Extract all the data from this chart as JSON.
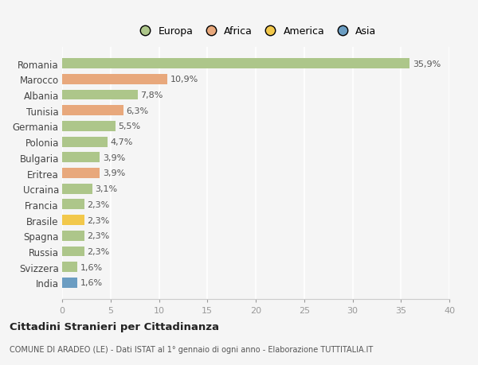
{
  "countries": [
    "Romania",
    "Marocco",
    "Albania",
    "Tunisia",
    "Germania",
    "Polonia",
    "Bulgaria",
    "Eritrea",
    "Ucraina",
    "Francia",
    "Brasile",
    "Spagna",
    "Russia",
    "Svizzera",
    "India"
  ],
  "values": [
    35.9,
    10.9,
    7.8,
    6.3,
    5.5,
    4.7,
    3.9,
    3.9,
    3.1,
    2.3,
    2.3,
    2.3,
    2.3,
    1.6,
    1.6
  ],
  "colors": [
    "#adc68a",
    "#e8a87c",
    "#adc68a",
    "#e8a87c",
    "#adc68a",
    "#adc68a",
    "#adc68a",
    "#e8a87c",
    "#adc68a",
    "#adc68a",
    "#f2c84b",
    "#adc68a",
    "#adc68a",
    "#adc68a",
    "#6b9dc2"
  ],
  "legend_labels": [
    "Europa",
    "Africa",
    "America",
    "Asia"
  ],
  "legend_colors": [
    "#adc68a",
    "#e8a87c",
    "#f2c84b",
    "#6b9dc2"
  ],
  "title": "Cittadini Stranieri per Cittadinanza",
  "subtitle": "COMUNE DI ARADEO (LE) - Dati ISTAT al 1° gennaio di ogni anno - Elaborazione TUTTITALIA.IT",
  "xlim": [
    0,
    40
  ],
  "xticks": [
    0,
    5,
    10,
    15,
    20,
    25,
    30,
    35,
    40
  ],
  "bg_color": "#f5f5f5",
  "grid_color": "#ffffff",
  "bar_height": 0.65,
  "label_fontsize": 8,
  "ytick_fontsize": 8.5,
  "xtick_fontsize": 8
}
